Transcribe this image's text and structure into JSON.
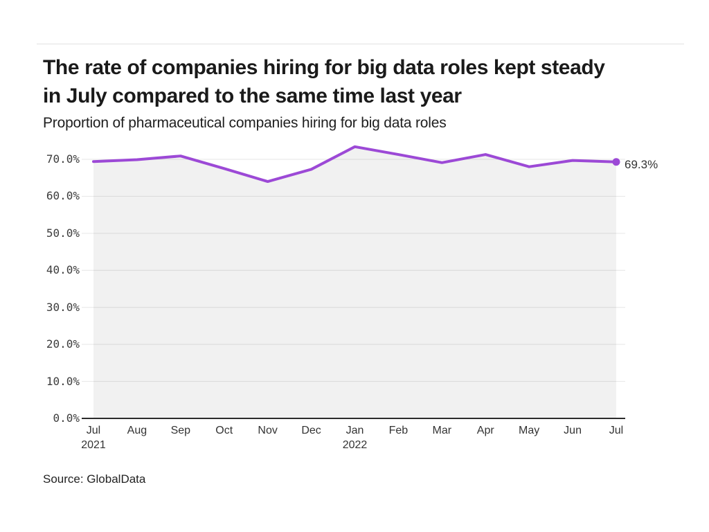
{
  "header": {
    "title_lines": [
      "The rate of companies hiring for big data roles kept steady",
      "in July compared to the same time last year"
    ],
    "subtitle": "Proportion of pharmaceutical companies hiring for big data roles"
  },
  "chart_data": {
    "type": "line",
    "title": "The rate of companies hiring for big data roles kept steady in July compared to the same time last year",
    "subtitle": "Proportion of pharmaceutical companies hiring for big data roles",
    "categories": [
      "Jul",
      "Aug",
      "Sep",
      "Oct",
      "Nov",
      "Dec",
      "Jan",
      "Feb",
      "Mar",
      "Apr",
      "May",
      "Jun",
      "Jul"
    ],
    "year_labels": [
      {
        "index": 0,
        "label": "2021"
      },
      {
        "index": 6,
        "label": "2022"
      }
    ],
    "series": [
      {
        "name": "Proportion of pharmaceutical companies hiring for big data roles",
        "values": [
          69.4,
          69.9,
          70.9,
          67.5,
          64.0,
          67.3,
          73.4,
          71.3,
          69.1,
          71.3,
          68.0,
          69.7,
          69.3
        ]
      }
    ],
    "unit": "%",
    "ylim": [
      0,
      75
    ],
    "yticks": [
      0,
      10,
      20,
      30,
      40,
      50,
      60,
      70
    ],
    "ytick_labels": [
      "0.0%",
      "10.0%",
      "20.0%",
      "30.0%",
      "40.0%",
      "50.0%",
      "60.0%",
      "70.0%"
    ],
    "grid": "horizontal",
    "legend": "none",
    "end_label": "69.3%",
    "line_color": "#9C49D6",
    "area_fill_color": "rgba(0,0,0,0.055)",
    "grid_color": "#E6E6E6",
    "axis_line_color": "#2B2B2B"
  },
  "source": {
    "text": "Source: GlobalData"
  }
}
